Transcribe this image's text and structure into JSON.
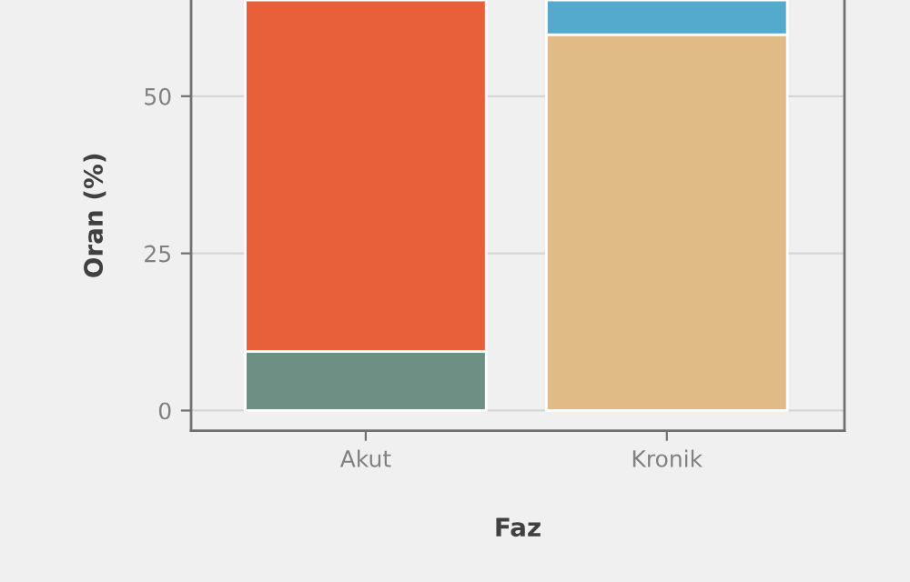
{
  "chart_data": {
    "type": "bar",
    "xlabel": "Faz",
    "ylabel": "Oran (%)",
    "categories": [
      "Akut",
      "Kronik"
    ],
    "stacked": true,
    "series": [
      {
        "colors": [
          "#6e8f84",
          "#e0bb86"
        ],
        "values": [
          9.4,
          59.8
        ]
      },
      {
        "colors": [
          "#e8603a",
          "#54aacd"
        ],
        "values": [
          55.9,
          5.5
        ]
      }
    ],
    "ylim": [
      -3.2,
      65.3
    ],
    "yticks": [
      0,
      25,
      50
    ],
    "grid": "y"
  }
}
